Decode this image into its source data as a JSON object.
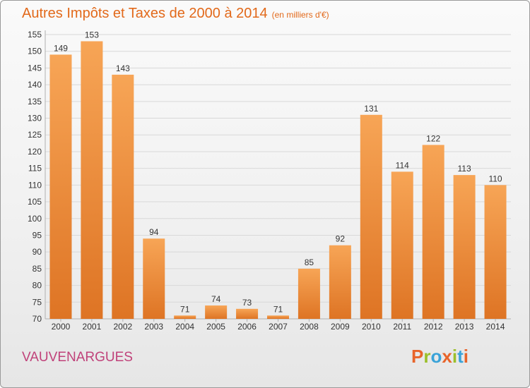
{
  "header": {
    "title": "Autres Impôts et Taxes de 2000 à 2014",
    "subtitle": "(en milliers d'€)"
  },
  "footer": {
    "commune": "VAUVENARGUES",
    "logo_letters": [
      {
        "char": "P",
        "color": "#e8642a"
      },
      {
        "char": "r",
        "color": "#9bbf2a"
      },
      {
        "char": "o",
        "color": "#3aa3d8"
      },
      {
        "char": "x",
        "color": "#e8642a"
      },
      {
        "char": "i",
        "color": "#9bbf2a"
      },
      {
        "char": "t",
        "color": "#3aa3d8"
      },
      {
        "char": "i",
        "color": "#e8642a"
      }
    ]
  },
  "colors": {
    "title": "#e2691a",
    "commune": "#c0427a",
    "bar_light": "#f7a556",
    "bar_dark": "#e07b2a",
    "grid": "#d8d8d8",
    "axis_text": "#333333"
  },
  "chart_data": {
    "type": "bar",
    "title": "Autres Impôts et Taxes de 2000 à 2014",
    "subtitle": "(en milliers d'€)",
    "categories": [
      "2000",
      "2001",
      "2002",
      "2003",
      "2004",
      "2005",
      "2006",
      "2007",
      "2008",
      "2009",
      "2010",
      "2011",
      "2012",
      "2013",
      "2014"
    ],
    "values": [
      149,
      153,
      143,
      94,
      71,
      74,
      73,
      71,
      85,
      92,
      131,
      114,
      122,
      113,
      110
    ],
    "ylim": [
      70,
      155
    ],
    "yticks": [
      70,
      75,
      80,
      85,
      90,
      95,
      100,
      105,
      110,
      115,
      120,
      125,
      130,
      135,
      140,
      145,
      150,
      155
    ],
    "grid": true,
    "xlabel": "",
    "ylabel": ""
  }
}
